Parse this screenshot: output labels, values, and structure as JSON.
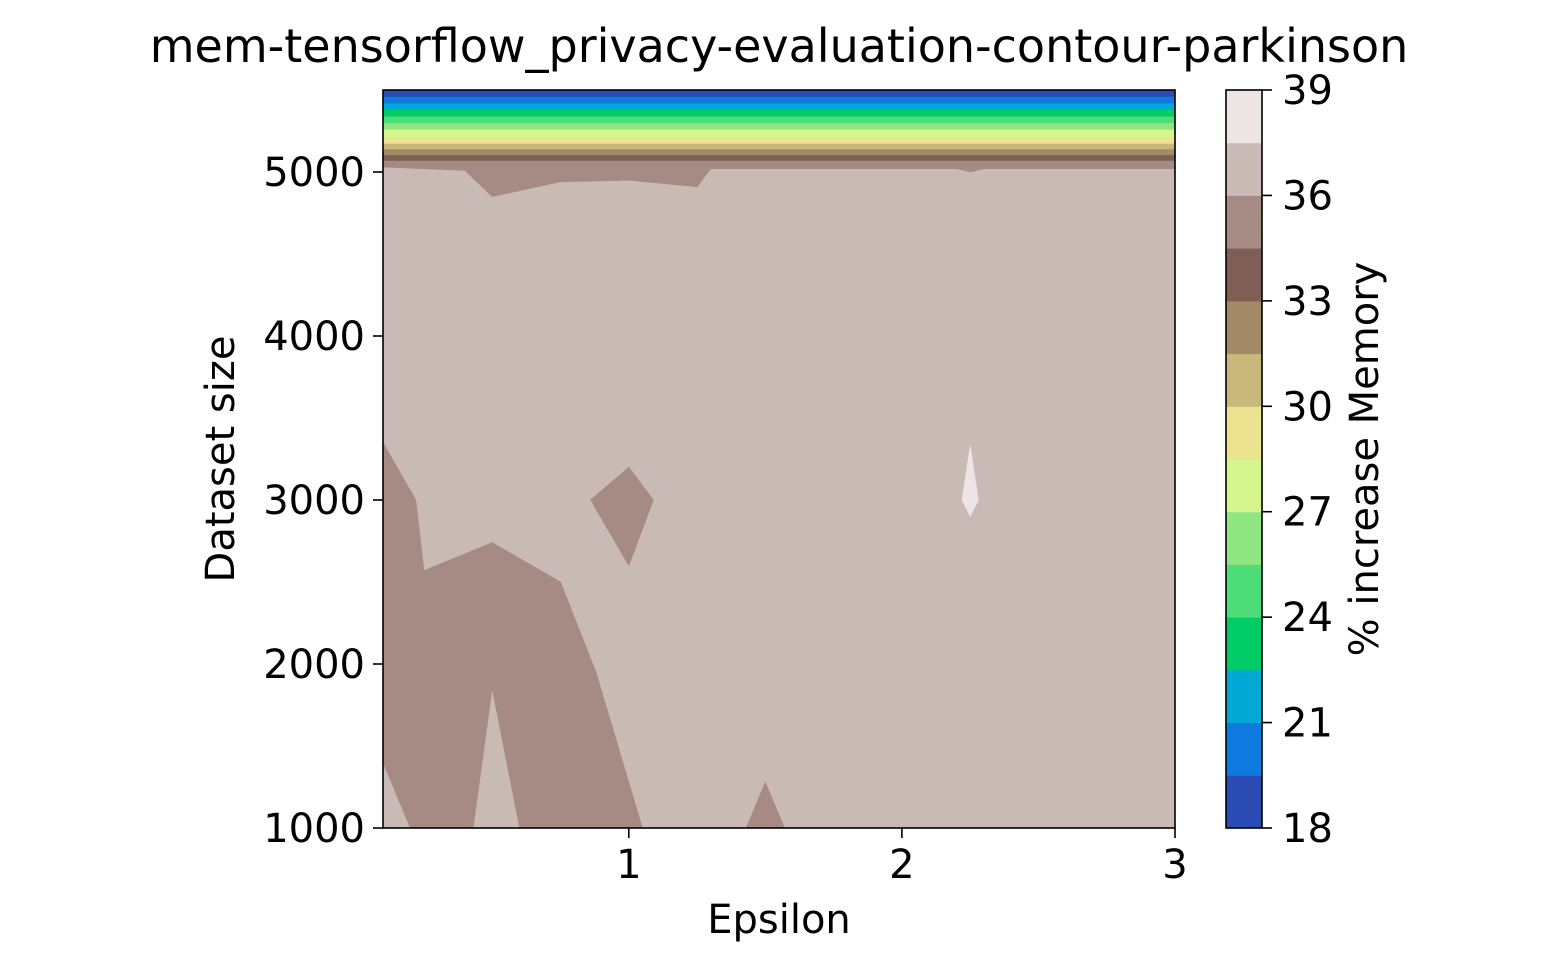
{
  "chart_data": {
    "type": "contour",
    "title": "mem-tensorflow_privacy-evaluation-contour-parkinson",
    "xlabel": "Epsilon",
    "ylabel": "Dataset size",
    "xlim": [
      0.1,
      3
    ],
    "ylim": [
      1000,
      5500
    ],
    "xticks": [
      1,
      2,
      3
    ],
    "yticks": [
      1000,
      2000,
      3000,
      4000,
      5000
    ],
    "colorbar": {
      "label": "% increase Memory",
      "range": [
        18,
        39
      ],
      "ticks": [
        18,
        21,
        24,
        27,
        30,
        33,
        36,
        39
      ],
      "levels": [
        {
          "from": 18.0,
          "to": 19.5,
          "color": "#2b4cb5"
        },
        {
          "from": 19.5,
          "to": 21.0,
          "color": "#0e7ae0"
        },
        {
          "from": 21.0,
          "to": 22.5,
          "color": "#00a8d4"
        },
        {
          "from": 22.5,
          "to": 24.0,
          "color": "#00cc66"
        },
        {
          "from": 24.0,
          "to": 25.5,
          "color": "#4ddd78"
        },
        {
          "from": 25.5,
          "to": 27.0,
          "color": "#8fe681"
        },
        {
          "from": 27.0,
          "to": 28.5,
          "color": "#d5f58f"
        },
        {
          "from": 28.5,
          "to": 30.0,
          "color": "#ebe38f"
        },
        {
          "from": 30.0,
          "to": 31.5,
          "color": "#c8b87a"
        },
        {
          "from": 31.5,
          "to": 33.0,
          "color": "#a38b67"
        },
        {
          "from": 33.0,
          "to": 34.5,
          "color": "#7f5f55"
        },
        {
          "from": 34.5,
          "to": 36.0,
          "color": "#a58b84"
        },
        {
          "from": 36.0,
          "to": 37.5,
          "color": "#c9bab5"
        },
        {
          "from": 37.5,
          "to": 39.0,
          "color": "#ede5e3"
        }
      ]
    },
    "regions": [
      {
        "level": 34.75,
        "points": [
          [
            0.1,
            1000
          ],
          [
            0.1,
            3350
          ],
          [
            0.22,
            3000
          ],
          [
            0.25,
            2570
          ],
          [
            0.5,
            2740
          ],
          [
            0.75,
            2500
          ],
          [
            0.88,
            1950
          ],
          [
            1.05,
            1000
          ],
          [
            0.6,
            1000
          ],
          [
            0.5,
            1850
          ],
          [
            0.43,
            1000
          ],
          [
            0.2,
            1000
          ],
          [
            0.1,
            1400
          ]
        ]
      },
      {
        "level": 34.75,
        "points": [
          [
            0.86,
            3000
          ],
          [
            1.0,
            3200
          ],
          [
            1.09,
            3000
          ],
          [
            1.0,
            2600
          ]
        ]
      },
      {
        "level": 34.75,
        "points": [
          [
            1.43,
            1000
          ],
          [
            1.5,
            1280
          ],
          [
            1.57,
            1000
          ]
        ]
      },
      {
        "level": 38.25,
        "points": [
          [
            2.22,
            3000
          ],
          [
            2.25,
            3330
          ],
          [
            2.28,
            3000
          ],
          [
            2.25,
            2900
          ]
        ]
      },
      {
        "level": 34.75,
        "points": [
          [
            0.1,
            5030
          ],
          [
            0.4,
            5010
          ],
          [
            0.5,
            4850
          ],
          [
            0.75,
            4940
          ],
          [
            1.0,
            4950
          ],
          [
            1.25,
            4910
          ],
          [
            1.3,
            5020
          ],
          [
            2.2,
            5020
          ],
          [
            2.25,
            5000
          ],
          [
            2.3,
            5020
          ],
          [
            3,
            5020
          ],
          [
            3,
            5070
          ],
          [
            0.1,
            5070
          ]
        ]
      },
      {
        "level": 33.75,
        "points": [
          [
            0.1,
            5070
          ],
          [
            3,
            5070
          ],
          [
            3,
            5105
          ],
          [
            0.1,
            5105
          ]
        ]
      },
      {
        "level": 32.25,
        "points": [
          [
            0.1,
            5105
          ],
          [
            3,
            5105
          ],
          [
            3,
            5140
          ],
          [
            0.1,
            5140
          ]
        ]
      },
      {
        "level": 30.75,
        "points": [
          [
            0.1,
            5140
          ],
          [
            3,
            5140
          ],
          [
            3,
            5175
          ],
          [
            0.1,
            5175
          ]
        ]
      },
      {
        "level": 29.25,
        "points": [
          [
            0.1,
            5175
          ],
          [
            3,
            5175
          ],
          [
            3,
            5215
          ],
          [
            0.1,
            5215
          ]
        ]
      },
      {
        "level": 27.75,
        "points": [
          [
            0.1,
            5215
          ],
          [
            3,
            5215
          ],
          [
            3,
            5260
          ],
          [
            0.1,
            5260
          ]
        ]
      },
      {
        "level": 26.25,
        "points": [
          [
            0.1,
            5260
          ],
          [
            3,
            5260
          ],
          [
            3,
            5300
          ],
          [
            0.1,
            5300
          ]
        ]
      },
      {
        "level": 24.75,
        "points": [
          [
            0.1,
            5300
          ],
          [
            3,
            5300
          ],
          [
            3,
            5340
          ],
          [
            0.1,
            5340
          ]
        ]
      },
      {
        "level": 23.25,
        "points": [
          [
            0.1,
            5340
          ],
          [
            3,
            5340
          ],
          [
            3,
            5380
          ],
          [
            0.1,
            5380
          ]
        ]
      },
      {
        "level": 21.75,
        "points": [
          [
            0.1,
            5380
          ],
          [
            3,
            5380
          ],
          [
            3,
            5420
          ],
          [
            0.1,
            5420
          ]
        ]
      },
      {
        "level": 20.25,
        "points": [
          [
            0.1,
            5420
          ],
          [
            3,
            5420
          ],
          [
            3,
            5460
          ],
          [
            0.1,
            5460
          ]
        ]
      },
      {
        "level": 18.75,
        "points": [
          [
            0.1,
            5460
          ],
          [
            3,
            5460
          ],
          [
            3,
            5500
          ],
          [
            0.1,
            5500
          ]
        ]
      }
    ],
    "background_level": 36.75
  }
}
